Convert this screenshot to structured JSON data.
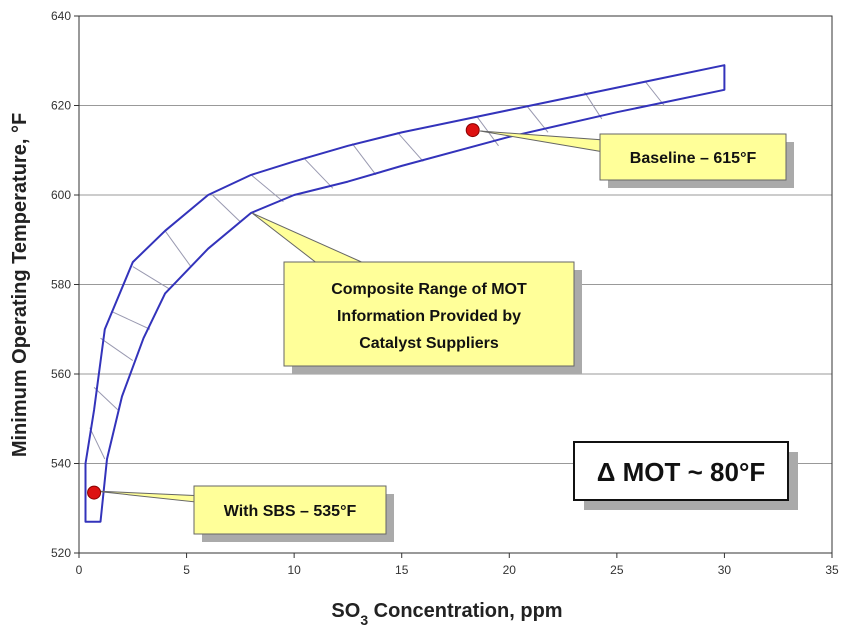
{
  "chart_data": {
    "type": "area",
    "title": "",
    "xlabel": "SO",
    "xlabel_sub": "3",
    "xlabel_rest": " Concentration, ppm",
    "ylabel": "Minimum Operating Temperature, °F",
    "xlim": [
      0,
      35
    ],
    "ylim": [
      520,
      640
    ],
    "x_ticks": [
      "0",
      "5",
      "10",
      "15",
      "20",
      "25",
      "30",
      "35"
    ],
    "y_ticks": [
      "520",
      "540",
      "560",
      "580",
      "600",
      "620",
      "640"
    ],
    "grid": "horizontal",
    "band": {
      "upper": [
        [
          0.3,
          540
        ],
        [
          0.7,
          552
        ],
        [
          1.2,
          570
        ],
        [
          2.5,
          585
        ],
        [
          4,
          592
        ],
        [
          6,
          600
        ],
        [
          8,
          604.5
        ],
        [
          10,
          607.5
        ],
        [
          12.5,
          611
        ],
        [
          15,
          614
        ],
        [
          20,
          619
        ],
        [
          25,
          624
        ],
        [
          30,
          629
        ]
      ],
      "lower": [
        [
          1,
          527
        ],
        [
          1.3,
          541
        ],
        [
          2,
          555
        ],
        [
          3,
          568
        ],
        [
          4,
          578
        ],
        [
          6,
          588
        ],
        [
          8,
          596
        ],
        [
          10,
          600
        ],
        [
          12.5,
          603
        ],
        [
          15,
          606.5
        ],
        [
          20,
          613
        ],
        [
          25,
          618.5
        ],
        [
          30,
          623.5
        ]
      ],
      "left_edge": [
        [
          0.3,
          540
        ],
        [
          0.3,
          527
        ],
        [
          1,
          527
        ]
      ],
      "hatches": [
        [
          [
            0.5,
            548
          ],
          [
            1.2,
            541
          ]
        ],
        [
          [
            0.7,
            557
          ],
          [
            1.8,
            552
          ]
        ],
        [
          [
            1.0,
            568
          ],
          [
            2.5,
            563
          ]
        ],
        [
          [
            1.5,
            574
          ],
          [
            3.3,
            570
          ]
        ],
        [
          [
            2.5,
            584
          ],
          [
            4.2,
            579
          ]
        ],
        [
          [
            4.0,
            592
          ],
          [
            5.2,
            584
          ]
        ],
        [
          [
            6.2,
            600
          ],
          [
            7.5,
            594
          ]
        ],
        [
          [
            8.0,
            604.5
          ],
          [
            9.5,
            598.5
          ]
        ],
        [
          [
            10.5,
            608
          ],
          [
            11.8,
            601.5
          ]
        ],
        [
          [
            12.7,
            611.5
          ],
          [
            13.8,
            604.5
          ]
        ],
        [
          [
            14.8,
            614
          ],
          [
            16.0,
            607.5
          ]
        ],
        [
          [
            18.5,
            617.5
          ],
          [
            19.5,
            611
          ]
        ],
        [
          [
            20.8,
            620
          ],
          [
            21.8,
            614
          ]
        ],
        [
          [
            23.5,
            623
          ],
          [
            24.3,
            617
          ]
        ],
        [
          [
            26.3,
            625.5
          ],
          [
            27.2,
            620
          ]
        ]
      ]
    },
    "points": [
      {
        "x": 0.7,
        "y": 533.5,
        "label": "With SBS – 535°F"
      },
      {
        "x": 18.3,
        "y": 614.5,
        "label": "Baseline – 615°F"
      }
    ],
    "annotations": {
      "composite_lines": [
        "Composite Range of MOT",
        "Information Provided by",
        "Catalyst Suppliers"
      ],
      "delta": "Δ MOT ~ 80°F"
    },
    "colors": {
      "band": "#3333bb",
      "hatch": "#9999b0",
      "callout_fill": "#ffff99",
      "callout_stroke": "#666666",
      "point_fill": "#dd1111",
      "point_stroke": "#880000",
      "grid": "#999999"
    }
  }
}
